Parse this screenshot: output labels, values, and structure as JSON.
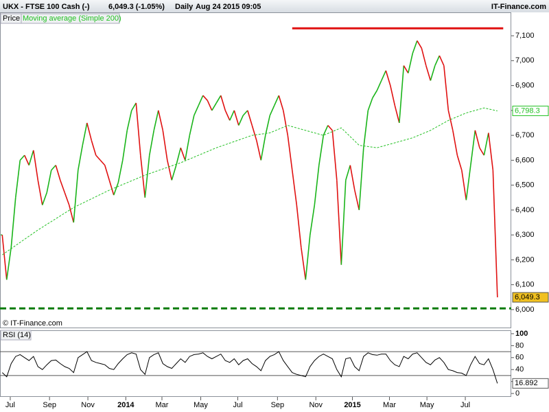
{
  "header": {
    "title": "UKX - FTSE 100 Cash (-)",
    "quote": "6,049.3 (-1.05%)",
    "period": "Daily",
    "timestamp": "Aug 24 2015 09:05",
    "brand": "IT-Finance.com"
  },
  "copyright": "© IT-Finance.com",
  "chart_data": [
    {
      "type": "line",
      "legend": [
        "Price",
        "Moving average (Simple 200)"
      ],
      "xlim": [
        -0.5,
        114.1
      ],
      "ylim": [
        5928,
        7194
      ],
      "yticks": [
        {
          "value": 6000,
          "label": "6,000"
        },
        {
          "value": 6100,
          "label": "6,100"
        },
        {
          "value": 6200,
          "label": "6,200"
        },
        {
          "value": 6300,
          "label": "6,300"
        },
        {
          "value": 6400,
          "label": "6,400"
        },
        {
          "value": 6500,
          "label": "6,500"
        },
        {
          "value": 6600,
          "label": "6,600"
        },
        {
          "value": 6700,
          "label": "6,700"
        },
        {
          "value": 6800,
          "label": "6,800"
        },
        {
          "value": 6900,
          "label": "6,900"
        },
        {
          "value": 7000,
          "label": "7,000"
        },
        {
          "value": 7100,
          "label": "7,100"
        }
      ],
      "series": [
        {
          "name": "Price",
          "up_color": "#19b419",
          "down_color": "#e01010",
          "last_label": "6,049.3",
          "label_color": "#f0c020",
          "values": [
            6300,
            6120,
            6250,
            6450,
            6600,
            6620,
            6580,
            6640,
            6520,
            6420,
            6470,
            6560,
            6580,
            6520,
            6470,
            6420,
            6350,
            6560,
            6660,
            6750,
            6680,
            6620,
            6600,
            6580,
            6520,
            6460,
            6510,
            6600,
            6720,
            6800,
            6830,
            6620,
            6450,
            6620,
            6720,
            6800,
            6720,
            6600,
            6520,
            6580,
            6650,
            6600,
            6700,
            6780,
            6820,
            6860,
            6840,
            6800,
            6830,
            6860,
            6800,
            6760,
            6800,
            6740,
            6780,
            6800,
            6740,
            6680,
            6600,
            6700,
            6780,
            6820,
            6860,
            6800,
            6700,
            6560,
            6420,
            6250,
            6120,
            6300,
            6420,
            6580,
            6700,
            6740,
            6720,
            6520,
            6180,
            6520,
            6580,
            6480,
            6400,
            6650,
            6800,
            6850,
            6880,
            6920,
            6960,
            6900,
            6820,
            6750,
            6980,
            6950,
            7030,
            7080,
            7050,
            6980,
            6920,
            6980,
            7020,
            6980,
            6800,
            6720,
            6620,
            6560,
            6440,
            6580,
            6720,
            6650,
            6620,
            6710,
            6560,
            6049.3
          ]
        },
        {
          "name": "Moving average (Simple 200)",
          "color": "#22c022",
          "dashed": true,
          "last_label": "6,798.3",
          "x": [
            0,
            8,
            16,
            24,
            32,
            40,
            48,
            56,
            60,
            64,
            68,
            72,
            76,
            80,
            84,
            88,
            92,
            96,
            100,
            104,
            108,
            111
          ],
          "values": [
            6220,
            6320,
            6410,
            6480,
            6540,
            6590,
            6650,
            6700,
            6710,
            6740,
            6720,
            6700,
            6730,
            6660,
            6650,
            6670,
            6690,
            6720,
            6760,
            6790,
            6810,
            6798.3
          ]
        }
      ],
      "lines": [
        {
          "value": 7130,
          "x": [
            65,
            112.3
          ],
          "color": "#e01010",
          "dashed": false
        },
        {
          "value": 6005,
          "x": [
            -0.5,
            114.1
          ],
          "color": "#0a7a0a",
          "dashed": true
        }
      ]
    },
    {
      "type": "line",
      "title": "RSI (14)",
      "xlim": [
        -0.5,
        114.1
      ],
      "ylim": [
        -5.7,
        105.7
      ],
      "yticks": [
        0,
        20,
        40,
        60,
        80,
        100
      ],
      "levels": [
        30,
        70
      ],
      "xticks": [
        {
          "value": 1.8,
          "label": "Jul"
        },
        {
          "value": 10.6,
          "label": "Sep"
        },
        {
          "value": 19.2,
          "label": "Nov"
        },
        {
          "value": 27.7,
          "label": "2014"
        },
        {
          "value": 35.8,
          "label": "Mar"
        },
        {
          "value": 44.5,
          "label": "May"
        },
        {
          "value": 52.8,
          "label": "Jul"
        },
        {
          "value": 61.7,
          "label": "Sep"
        },
        {
          "value": 70.3,
          "label": "Nov"
        },
        {
          "value": 78.5,
          "label": "2015"
        },
        {
          "value": 86.8,
          "label": "Mar"
        },
        {
          "value": 95.2,
          "label": "May"
        },
        {
          "value": 103.8,
          "label": "Jul"
        }
      ],
      "series": [
        {
          "name": "RSI (14)",
          "color": "#000000",
          "values": [
            35,
            28,
            50,
            62,
            65,
            60,
            55,
            62,
            45,
            40,
            48,
            55,
            56,
            50,
            45,
            42,
            35,
            60,
            65,
            70,
            55,
            52,
            50,
            48,
            42,
            40,
            50,
            58,
            65,
            68,
            66,
            40,
            32,
            60,
            65,
            68,
            50,
            45,
            42,
            50,
            58,
            52,
            62,
            65,
            66,
            68,
            62,
            58,
            62,
            66,
            55,
            52,
            58,
            48,
            55,
            58,
            50,
            45,
            38,
            55,
            62,
            65,
            70,
            55,
            45,
            35,
            32,
            30,
            28,
            45,
            55,
            62,
            66,
            62,
            58,
            40,
            28,
            58,
            60,
            45,
            38,
            62,
            68,
            65,
            64,
            66,
            66,
            55,
            48,
            45,
            62,
            58,
            66,
            68,
            60,
            52,
            48,
            56,
            60,
            52,
            40,
            38,
            35,
            34,
            30,
            48,
            62,
            50,
            48,
            58,
            40,
            16.892
          ]
        }
      ]
    }
  ]
}
